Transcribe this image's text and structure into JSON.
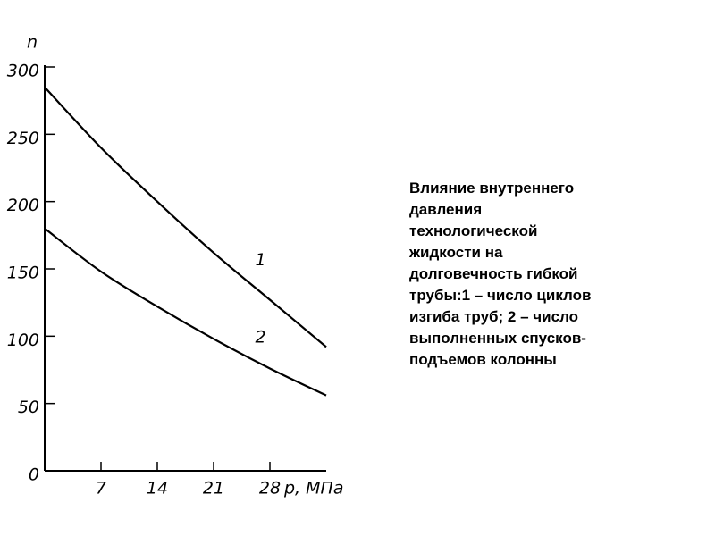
{
  "chart_data": {
    "type": "line",
    "y_label": "n",
    "x_label": "p, МПа",
    "x": [
      0,
      7,
      14,
      21,
      28,
      35
    ],
    "series": [
      {
        "name": "1",
        "color": "#000000",
        "values": [
          285,
          240,
          200,
          162,
          127,
          92
        ]
      },
      {
        "name": "2",
        "color": "#000000",
        "values": [
          180,
          148,
          122,
          98,
          76,
          56
        ]
      }
    ],
    "xlim": [
      0,
      35
    ],
    "xticks": [
      7,
      14,
      21,
      28
    ],
    "ylim": [
      0,
      300
    ],
    "yticks": [
      0,
      50,
      100,
      150,
      200,
      250,
      300
    ],
    "grid": false
  },
  "caption": {
    "lines": [
      "Влияние внутреннего",
      "давления",
      "технологической",
      "жидкости на",
      "долговечность гибкой",
      "трубы:1 – число циклов",
      "изгиба труб; 2 – число",
      "выполненных спусков-",
      "подъемов колонны"
    ]
  }
}
